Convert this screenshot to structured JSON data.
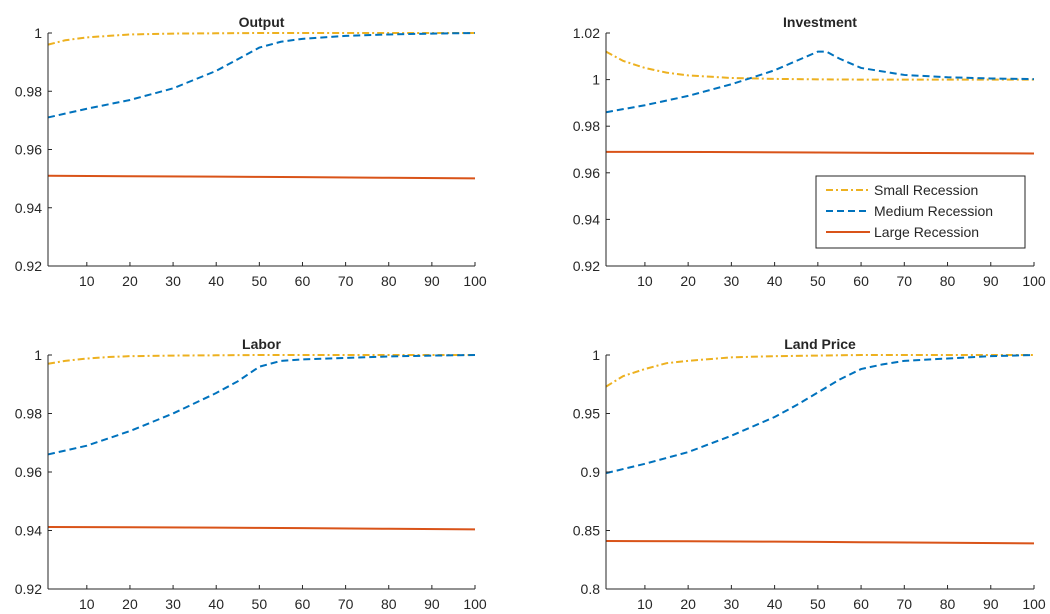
{
  "colors": {
    "small": "#EDB120",
    "medium": "#0072BD",
    "large": "#D95319",
    "axis": "#262626"
  },
  "legend": {
    "placement": "inside-lower-right of Investment panel",
    "entries": [
      {
        "key": "small",
        "label": "Small Recession",
        "dash": "dashdot"
      },
      {
        "key": "medium",
        "label": "Medium Recession",
        "dash": "dashed"
      },
      {
        "key": "large",
        "label": "Large Recession",
        "dash": "solid"
      }
    ]
  },
  "chart_data": [
    {
      "type": "line",
      "title": "Output",
      "xlim": [
        1,
        100
      ],
      "ylim": [
        0.92,
        1
      ],
      "xticks": [
        10,
        20,
        30,
        40,
        50,
        60,
        70,
        80,
        90,
        100
      ],
      "yticks": [
        0.92,
        0.94,
        0.96,
        0.98,
        1
      ],
      "yticklabels": [
        "0.92",
        "0.94",
        "0.96",
        "0.98",
        "1"
      ],
      "series": [
        {
          "key": "small",
          "x": [
            1,
            5,
            10,
            15,
            20,
            30,
            40,
            50,
            60,
            70,
            80,
            90,
            100
          ],
          "y": [
            0.996,
            0.9975,
            0.9985,
            0.999,
            0.9995,
            0.9998,
            0.9999,
            1,
            1,
            1,
            1,
            1,
            1
          ]
        },
        {
          "key": "medium",
          "x": [
            1,
            10,
            20,
            30,
            40,
            45,
            50,
            55,
            60,
            70,
            80,
            90,
            100
          ],
          "y": [
            0.971,
            0.974,
            0.977,
            0.981,
            0.987,
            0.991,
            0.995,
            0.997,
            0.998,
            0.999,
            0.9995,
            0.9998,
            1
          ]
        },
        {
          "key": "large",
          "x": [
            1,
            20,
            40,
            50,
            60,
            80,
            100
          ],
          "y": [
            0.951,
            0.9508,
            0.9507,
            0.9506,
            0.9505,
            0.9503,
            0.9501
          ]
        }
      ]
    },
    {
      "type": "line",
      "title": "Investment",
      "xlim": [
        1,
        100
      ],
      "ylim": [
        0.92,
        1.02
      ],
      "xticks": [
        10,
        20,
        30,
        40,
        50,
        60,
        70,
        80,
        90,
        100
      ],
      "yticks": [
        0.92,
        0.94,
        0.96,
        0.98,
        1,
        1.02
      ],
      "yticklabels": [
        "0.92",
        "0.94",
        "0.96",
        "0.98",
        "1",
        "1.02"
      ],
      "series": [
        {
          "key": "small",
          "x": [
            1,
            5,
            10,
            15,
            20,
            30,
            40,
            50,
            60,
            70,
            80,
            90,
            100
          ],
          "y": [
            1.012,
            1.008,
            1.005,
            1.003,
            1.0018,
            1.0007,
            1.0003,
            1.0001,
            1,
            1,
            1,
            1,
            1
          ]
        },
        {
          "key": "medium",
          "x": [
            1,
            10,
            20,
            30,
            40,
            45,
            50,
            52,
            55,
            60,
            70,
            80,
            90,
            100
          ],
          "y": [
            0.986,
            0.989,
            0.993,
            0.998,
            1.004,
            1.008,
            1.012,
            1.012,
            1.009,
            1.005,
            1.002,
            1.001,
            1.0005,
            1.0002
          ]
        },
        {
          "key": "large",
          "x": [
            1,
            25,
            50,
            75,
            100
          ],
          "y": [
            0.969,
            0.9689,
            0.9687,
            0.9685,
            0.9683
          ]
        }
      ]
    },
    {
      "type": "line",
      "title": "Labor",
      "xlim": [
        1,
        100
      ],
      "ylim": [
        0.92,
        1
      ],
      "xticks": [
        10,
        20,
        30,
        40,
        50,
        60,
        70,
        80,
        90,
        100
      ],
      "yticks": [
        0.92,
        0.94,
        0.96,
        0.98,
        1
      ],
      "yticklabels": [
        "0.92",
        "0.94",
        "0.96",
        "0.98",
        "1"
      ],
      "series": [
        {
          "key": "small",
          "x": [
            1,
            5,
            10,
            15,
            20,
            30,
            40,
            50,
            60,
            70,
            80,
            90,
            100
          ],
          "y": [
            0.997,
            0.998,
            0.9988,
            0.9993,
            0.9996,
            0.9998,
            0.9999,
            1,
            1,
            1,
            1,
            1,
            1
          ]
        },
        {
          "key": "medium",
          "x": [
            1,
            10,
            20,
            30,
            40,
            45,
            50,
            55,
            60,
            70,
            80,
            90,
            100
          ],
          "y": [
            0.966,
            0.969,
            0.974,
            0.98,
            0.987,
            0.991,
            0.996,
            0.998,
            0.9985,
            0.999,
            0.9995,
            0.9998,
            1
          ]
        },
        {
          "key": "large",
          "x": [
            1,
            20,
            40,
            50,
            60,
            80,
            100
          ],
          "y": [
            0.9412,
            0.9411,
            0.941,
            0.9409,
            0.9408,
            0.9406,
            0.9404
          ]
        }
      ]
    },
    {
      "type": "line",
      "title": "Land Price",
      "xlim": [
        1,
        100
      ],
      "ylim": [
        0.8,
        1
      ],
      "xticks": [
        10,
        20,
        30,
        40,
        50,
        60,
        70,
        80,
        90,
        100
      ],
      "yticks": [
        0.8,
        0.85,
        0.9,
        0.95,
        1
      ],
      "yticklabels": [
        "0.8",
        "0.85",
        "0.9",
        "0.95",
        "1"
      ],
      "series": [
        {
          "key": "small",
          "x": [
            1,
            5,
            10,
            15,
            20,
            30,
            40,
            50,
            60,
            70,
            80,
            90,
            100
          ],
          "y": [
            0.973,
            0.982,
            0.988,
            0.993,
            0.995,
            0.998,
            0.999,
            0.9995,
            1,
            1,
            1,
            1,
            1
          ]
        },
        {
          "key": "medium",
          "x": [
            1,
            10,
            20,
            30,
            40,
            45,
            50,
            55,
            60,
            65,
            70,
            80,
            90,
            100
          ],
          "y": [
            0.899,
            0.907,
            0.917,
            0.931,
            0.947,
            0.957,
            0.968,
            0.979,
            0.988,
            0.992,
            0.995,
            0.997,
            0.999,
            1
          ]
        },
        {
          "key": "large",
          "x": [
            1,
            20,
            40,
            50,
            60,
            80,
            100
          ],
          "y": [
            0.841,
            0.8408,
            0.8405,
            0.8403,
            0.84,
            0.8395,
            0.839
          ]
        }
      ]
    }
  ]
}
